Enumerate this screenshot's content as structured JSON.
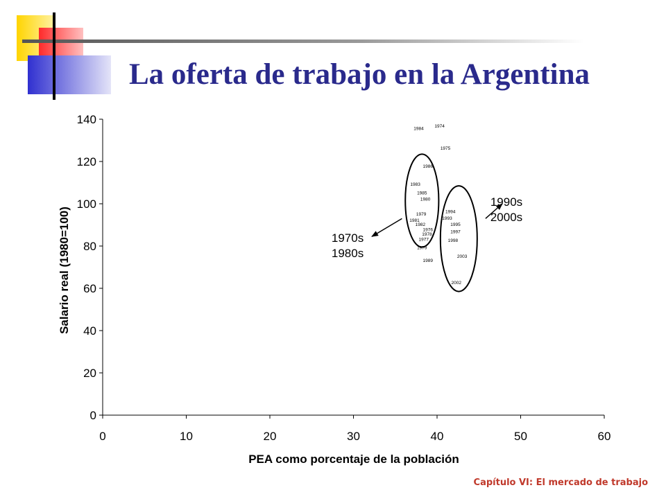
{
  "slide": {
    "title": "La oferta de trabajo en la Argentina",
    "footer": "Capítulo VI: El mercado de trabajo",
    "colors": {
      "title": "#2a2a8c",
      "footer": "#c0392b",
      "deco_yellow": "#ffe14d",
      "deco_red": "#ff3b3b",
      "deco_blue": "#3a3ad6"
    }
  },
  "chart_data": {
    "type": "scatter",
    "xlabel": "PEA como porcentaje de la población",
    "ylabel": "Salario real (1980=100)",
    "xlim": [
      0,
      60
    ],
    "ylim": [
      0,
      140
    ],
    "xticks": [
      0,
      10,
      20,
      30,
      40,
      50,
      60
    ],
    "yticks": [
      0,
      20,
      40,
      60,
      80,
      100,
      120,
      140
    ],
    "grid": false,
    "points": [
      {
        "label": "1984",
        "x": 37.8,
        "y": 135
      },
      {
        "label": "1974",
        "x": 40.3,
        "y": 136
      },
      {
        "label": "1975",
        "x": 41.0,
        "y": 125.5
      },
      {
        "label": "1986",
        "x": 38.9,
        "y": 117
      },
      {
        "label": "1983",
        "x": 37.4,
        "y": 108.5
      },
      {
        "label": "1985",
        "x": 38.2,
        "y": 104.5
      },
      {
        "label": "1980",
        "x": 38.6,
        "y": 101.5
      },
      {
        "label": "1979",
        "x": 38.1,
        "y": 94.5
      },
      {
        "label": "1994",
        "x": 41.6,
        "y": 95.5
      },
      {
        "label": "1981",
        "x": 37.3,
        "y": 91.5
      },
      {
        "label": "1993",
        "x": 41.2,
        "y": 92.5
      },
      {
        "label": "1995",
        "x": 42.2,
        "y": 89.5
      },
      {
        "label": "1982",
        "x": 38.0,
        "y": 89.5
      },
      {
        "label": "1976",
        "x": 38.9,
        "y": 87
      },
      {
        "label": "1978",
        "x": 38.8,
        "y": 85
      },
      {
        "label": "1997",
        "x": 42.2,
        "y": 86
      },
      {
        "label": "1977",
        "x": 38.4,
        "y": 82.5
      },
      {
        "label": "1998",
        "x": 41.9,
        "y": 82
      },
      {
        "label": "1979",
        "x": 38.2,
        "y": 78.5
      },
      {
        "label": "2003",
        "x": 43.0,
        "y": 74.5
      },
      {
        "label": "1989",
        "x": 38.9,
        "y": 72.5
      },
      {
        "label": "2002",
        "x": 42.3,
        "y": 62
      }
    ],
    "annotations": [
      {
        "lines": [
          "1970s",
          "1980s"
        ],
        "x": 29.3,
        "y": 82
      },
      {
        "lines": [
          "1990s",
          "2000s"
        ],
        "x": 48.3,
        "y": 99
      }
    ],
    "ellipses": [
      {
        "cx": 38.2,
        "cy": 101.5,
        "rx": 2.0,
        "ry": 22
      },
      {
        "cx": 42.6,
        "cy": 83.5,
        "rx": 2.2,
        "ry": 25
      }
    ],
    "arrows": [
      {
        "from": [
          35.8,
          93
        ],
        "to": [
          32.2,
          84.5
        ]
      },
      {
        "from": [
          45.8,
          93
        ],
        "to": [
          47.8,
          100
        ]
      }
    ]
  }
}
